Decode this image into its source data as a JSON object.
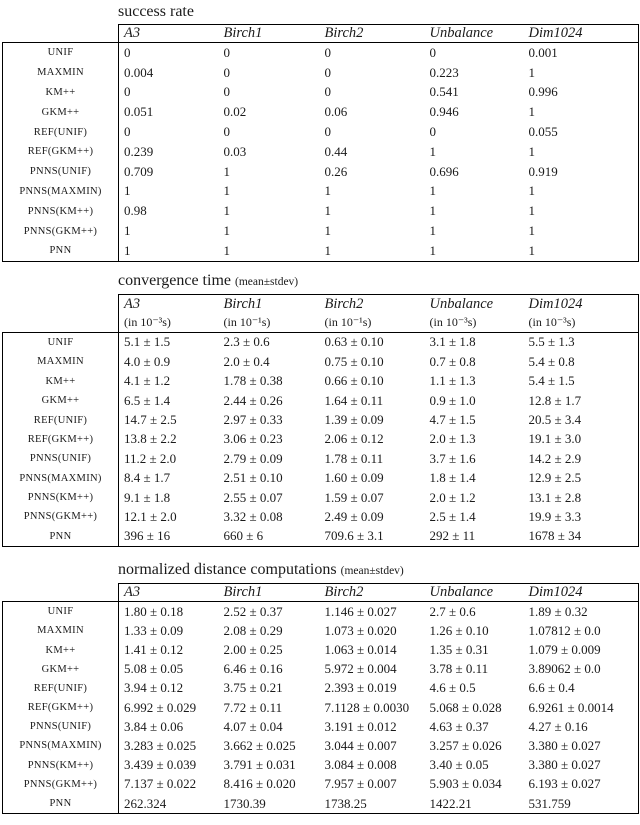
{
  "colors": {
    "background": "#ffffff",
    "text": "#1a1a1a",
    "border": "#000000"
  },
  "tables": [
    {
      "title": "success rate",
      "title_note": "",
      "columns": [
        "A3",
        "Birch1",
        "Birch2",
        "Unbalance",
        "Dim1024"
      ],
      "units": [],
      "rows": [
        {
          "label": "UNIF",
          "values": [
            "0",
            "0",
            "0",
            "0",
            "0.001"
          ]
        },
        {
          "label": "MAXMIN",
          "values": [
            "0.004",
            "0",
            "0",
            "0.223",
            "1"
          ]
        },
        {
          "label": "KM++",
          "values": [
            "0",
            "0",
            "0",
            "0.541",
            "0.996"
          ]
        },
        {
          "label": "GKM++",
          "values": [
            "0.051",
            "0.02",
            "0.06",
            "0.946",
            "1"
          ]
        },
        {
          "label": "REF(UNIF)",
          "values": [
            "0",
            "0",
            "0",
            "0",
            "0.055"
          ]
        },
        {
          "label": "REF(GKM++)",
          "values": [
            "0.239",
            "0.03",
            "0.44",
            "1",
            "1"
          ]
        },
        {
          "label": "PNNS(UNIF)",
          "values": [
            "0.709",
            "1",
            "0.26",
            "0.696",
            "0.919"
          ]
        },
        {
          "label": "PNNS(MAXMIN)",
          "values": [
            "1",
            "1",
            "1",
            "1",
            "1"
          ]
        },
        {
          "label": "PNNS(KM++)",
          "values": [
            "0.98",
            "1",
            "1",
            "1",
            "1"
          ]
        },
        {
          "label": "PNNS(GKM++)",
          "values": [
            "1",
            "1",
            "1",
            "1",
            "1"
          ]
        },
        {
          "label": "PNN",
          "values": [
            "1",
            "1",
            "1",
            "1",
            "1"
          ]
        }
      ]
    },
    {
      "title": "convergence time",
      "title_note": "(mean±stdev)",
      "columns": [
        "A3",
        "Birch1",
        "Birch2",
        "Unbalance",
        "Dim1024"
      ],
      "units": [
        "(in 10⁻³s)",
        "(in 10⁻¹s)",
        "(in 10⁻¹s)",
        "(in 10⁻³s)",
        "(in 10⁻³s)"
      ],
      "rows": [
        {
          "label": "UNIF",
          "values": [
            "5.1 ± 1.5",
            "2.3 ± 0.6",
            "0.63 ± 0.10",
            "3.1 ± 1.8",
            "5.5 ± 1.3"
          ]
        },
        {
          "label": "MAXMIN",
          "values": [
            "4.0 ± 0.9",
            "2.0 ± 0.4",
            "0.75 ± 0.10",
            "0.7 ± 0.8",
            "5.4 ± 0.8"
          ]
        },
        {
          "label": "KM++",
          "values": [
            "4.1 ± 1.2",
            "1.78 ± 0.38",
            "0.66 ± 0.10",
            "1.1 ± 1.3",
            "5.4 ± 1.5"
          ]
        },
        {
          "label": "GKM++",
          "values": [
            "6.5 ± 1.4",
            "2.44 ± 0.26",
            "1.64 ± 0.11",
            "0.9 ± 1.0",
            "12.8 ± 1.7"
          ]
        },
        {
          "label": "REF(UNIF)",
          "values": [
            "14.7 ± 2.5",
            "2.97 ± 0.33",
            "1.39 ± 0.09",
            "4.7 ± 1.5",
            "20.5 ± 3.4"
          ]
        },
        {
          "label": "REF(GKM++)",
          "values": [
            "13.8 ± 2.2",
            "3.06 ± 0.23",
            "2.06 ± 0.12",
            "2.0 ± 1.3",
            "19.1 ± 3.0"
          ]
        },
        {
          "label": "PNNS(UNIF)",
          "values": [
            "11.2 ± 2.0",
            "2.79 ± 0.09",
            "1.78 ± 0.11",
            "3.7 ± 1.6",
            "14.2 ± 2.9"
          ]
        },
        {
          "label": "PNNS(MAXMIN)",
          "values": [
            "8.4 ± 1.7",
            "2.51 ± 0.10",
            "1.60 ± 0.09",
            "1.8 ± 1.4",
            "12.9 ± 2.5"
          ]
        },
        {
          "label": "PNNS(KM++)",
          "values": [
            "9.1 ± 1.8",
            "2.55 ± 0.07",
            "1.59 ± 0.07",
            "2.0 ± 1.2",
            "13.1 ± 2.8"
          ]
        },
        {
          "label": "PNNS(GKM++)",
          "values": [
            "12.1 ± 2.0",
            "3.32 ± 0.08",
            "2.49 ± 0.09",
            "2.5 ± 1.4",
            "19.9 ± 3.3"
          ]
        },
        {
          "label": "PNN",
          "values": [
            "396 ± 16",
            "660 ± 6",
            "709.6 ± 3.1",
            "292 ± 11",
            "1678 ± 34"
          ]
        }
      ]
    },
    {
      "title": "normalized distance computations",
      "title_note": "(mean±stdev)",
      "columns": [
        "A3",
        "Birch1",
        "Birch2",
        "Unbalance",
        "Dim1024"
      ],
      "units": [],
      "rows": [
        {
          "label": "UNIF",
          "values": [
            "1.80 ± 0.18",
            "2.52 ± 0.37",
            "1.146 ± 0.027",
            "2.7 ± 0.6",
            "1.89 ± 0.32"
          ]
        },
        {
          "label": "MAXMIN",
          "values": [
            "1.33 ± 0.09",
            "2.08 ± 0.29",
            "1.073 ± 0.020",
            "1.26 ± 0.10",
            "1.07812 ± 0.0"
          ]
        },
        {
          "label": "KM++",
          "values": [
            "1.41 ± 0.12",
            "2.00 ± 0.25",
            "1.063 ± 0.014",
            "1.35 ± 0.31",
            "1.079 ± 0.009"
          ]
        },
        {
          "label": "GKM++",
          "values": [
            "5.08 ± 0.05",
            "6.46 ± 0.16",
            "5.972 ± 0.004",
            "3.78 ± 0.11",
            "3.89062 ± 0.0"
          ]
        },
        {
          "label": "REF(UNIF)",
          "values": [
            "3.94 ± 0.12",
            "3.75 ± 0.21",
            "2.393 ± 0.019",
            "4.6 ± 0.5",
            "6.6 ± 0.4"
          ]
        },
        {
          "label": "REF(GKM++)",
          "values": [
            "6.992 ± 0.029",
            "7.72 ± 0.11",
            "7.1128 ± 0.0030",
            "5.068 ± 0.028",
            "6.9261 ± 0.0014"
          ]
        },
        {
          "label": "PNNS(UNIF)",
          "values": [
            "3.84 ± 0.06",
            "4.07 ± 0.04",
            "3.191 ± 0.012",
            "4.63 ± 0.37",
            "4.27 ± 0.16"
          ]
        },
        {
          "label": "PNNS(MAXMIN)",
          "values": [
            "3.283 ± 0.025",
            "3.662 ± 0.025",
            "3.044 ± 0.007",
            "3.257 ± 0.026",
            "3.380 ± 0.027"
          ]
        },
        {
          "label": "PNNS(KM++)",
          "values": [
            "3.439 ± 0.039",
            "3.791 ± 0.031",
            "3.084 ± 0.008",
            "3.40 ± 0.05",
            "3.380 ± 0.027"
          ]
        },
        {
          "label": "PNNS(GKM++)",
          "values": [
            "7.137 ± 0.022",
            "8.416 ± 0.020",
            "7.957 ± 0.007",
            "5.903 ± 0.034",
            "6.193 ± 0.027"
          ]
        },
        {
          "label": "PNN",
          "values": [
            "262.324",
            "1730.39",
            "1738.25",
            "1422.21",
            "531.759"
          ]
        }
      ]
    }
  ]
}
